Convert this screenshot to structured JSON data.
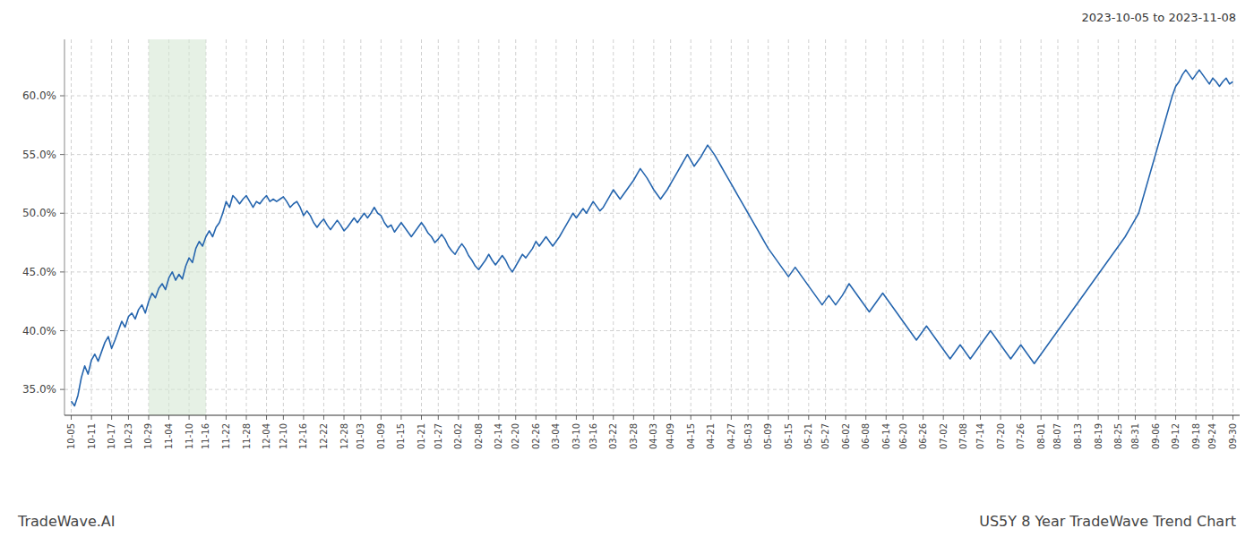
{
  "chart_data": {
    "type": "line",
    "title": "US5Y 8 Year TradeWave Trend Chart",
    "subtitle": "2023-10-05 to 2023-11-08",
    "annotations": [
      {
        "text": "TradeWave.AI"
      }
    ],
    "color": "#2565AE",
    "grid": true,
    "ylim": [
      0.328,
      0.648
    ],
    "yticks": [
      {
        "value": 0.35,
        "label": "35.0%"
      },
      {
        "value": 0.4,
        "label": "40.0%"
      },
      {
        "value": 0.45,
        "label": "45.0%"
      },
      {
        "value": 0.5,
        "label": "50.0%"
      },
      {
        "value": 0.55,
        "label": "55.0%"
      },
      {
        "value": 0.6,
        "label": "60.0%"
      }
    ],
    "shaded_range": {
      "from": "10-29",
      "to": "11-16",
      "color": "#d5e8d4"
    },
    "categories": [
      "10-05",
      null,
      null,
      null,
      null,
      null,
      "10-11",
      null,
      null,
      null,
      null,
      null,
      "10-17",
      null,
      null,
      null,
      null,
      "10-23",
      null,
      null,
      null,
      null,
      null,
      "10-29",
      null,
      null,
      null,
      null,
      null,
      "11-04",
      null,
      null,
      null,
      null,
      null,
      "11-10",
      null,
      null,
      null,
      null,
      "11-16",
      null,
      null,
      null,
      null,
      null,
      "11-22",
      null,
      null,
      null,
      null,
      null,
      "11-28",
      null,
      null,
      null,
      null,
      null,
      "12-04",
      null,
      null,
      null,
      null,
      "12-10",
      null,
      null,
      null,
      null,
      null,
      "12-16",
      null,
      null,
      null,
      null,
      null,
      "12-22",
      null,
      null,
      null,
      null,
      null,
      "12-28",
      null,
      null,
      null,
      null,
      "01-03",
      null,
      null,
      null,
      null,
      null,
      "01-09",
      null,
      null,
      null,
      null,
      null,
      "01-15",
      null,
      null,
      null,
      null,
      null,
      "01-21",
      null,
      null,
      null,
      null,
      "01-27",
      null,
      null,
      null,
      null,
      null,
      "02-02",
      null,
      null,
      null,
      null,
      null,
      "02-08",
      null,
      null,
      null,
      null,
      null,
      "02-14",
      null,
      null,
      null,
      null,
      "02-20",
      null,
      null,
      null,
      null,
      null,
      "02-26",
      null,
      null,
      null,
      null,
      null,
      "03-04",
      null,
      null,
      null,
      null,
      null,
      "03-10",
      null,
      null,
      null,
      null,
      "03-16",
      null,
      null,
      null,
      null,
      null,
      "03-22",
      null,
      null,
      null,
      null,
      null,
      "03-28",
      null,
      null,
      null,
      null,
      null,
      "04-03",
      null,
      null,
      null,
      null,
      "04-09",
      null,
      null,
      null,
      null,
      null,
      "04-15",
      null,
      null,
      null,
      null,
      null,
      "04-21",
      null,
      null,
      null,
      null,
      null,
      "04-27",
      null,
      null,
      null,
      null,
      "05-03",
      null,
      null,
      null,
      null,
      null,
      "05-09",
      null,
      null,
      null,
      null,
      null,
      "05-15",
      null,
      null,
      null,
      null,
      null,
      "05-21",
      null,
      null,
      null,
      null,
      "05-27",
      null,
      null,
      null,
      null,
      null,
      "06-02",
      null,
      null,
      null,
      null,
      null,
      "06-08",
      null,
      null,
      null,
      null,
      null,
      "06-14",
      null,
      null,
      null,
      null,
      "06-20",
      null,
      null,
      null,
      null,
      null,
      "06-26",
      null,
      null,
      null,
      null,
      null,
      "07-02",
      null,
      null,
      null,
      null,
      null,
      "07-08",
      null,
      null,
      null,
      null,
      "07-14",
      null,
      null,
      null,
      null,
      null,
      "07-20",
      null,
      null,
      null,
      null,
      null,
      "07-26",
      null,
      null,
      null,
      null,
      null,
      "08-01",
      null,
      null,
      null,
      null,
      "08-07",
      null,
      null,
      null,
      null,
      null,
      "08-13",
      null,
      null,
      null,
      null,
      null,
      "08-19",
      null,
      null,
      null,
      null,
      null,
      "08-25",
      null,
      null,
      null,
      null,
      "08-31",
      null,
      null,
      null,
      null,
      null,
      "09-06",
      null,
      null,
      null,
      null,
      null,
      "09-12",
      null,
      null,
      null,
      null,
      null,
      "09-18",
      null,
      null,
      null,
      null,
      "09-24",
      null,
      null,
      null,
      null,
      null,
      "09-30"
    ],
    "values": [
      0.34,
      0.336,
      0.345,
      0.36,
      0.37,
      0.363,
      0.375,
      0.38,
      0.374,
      0.382,
      0.39,
      0.395,
      0.385,
      0.392,
      0.4,
      0.408,
      0.403,
      0.412,
      0.415,
      0.41,
      0.418,
      0.422,
      0.415,
      0.425,
      0.432,
      0.428,
      0.436,
      0.44,
      0.435,
      0.445,
      0.45,
      0.443,
      0.448,
      0.444,
      0.455,
      0.462,
      0.458,
      0.47,
      0.476,
      0.472,
      0.48,
      0.485,
      0.48,
      0.488,
      0.492,
      0.5,
      0.51,
      0.505,
      0.515,
      0.512,
      0.508,
      0.512,
      0.515,
      0.51,
      0.505,
      0.51,
      0.508,
      0.512,
      0.515,
      0.51,
      0.512,
      0.51,
      0.512,
      0.514,
      0.51,
      0.505,
      0.508,
      0.51,
      0.505,
      0.498,
      0.502,
      0.498,
      0.492,
      0.488,
      0.492,
      0.495,
      0.49,
      0.486,
      0.49,
      0.494,
      0.49,
      0.485,
      0.488,
      0.492,
      0.496,
      0.492,
      0.496,
      0.5,
      0.496,
      0.5,
      0.505,
      0.5,
      0.498,
      0.492,
      0.488,
      0.49,
      0.484,
      0.488,
      0.492,
      0.488,
      0.484,
      0.48,
      0.484,
      0.488,
      0.492,
      0.488,
      0.483,
      0.48,
      0.475,
      0.478,
      0.482,
      0.478,
      0.472,
      0.468,
      0.465,
      0.47,
      0.474,
      0.47,
      0.464,
      0.46,
      0.455,
      0.452,
      0.456,
      0.46,
      0.465,
      0.46,
      0.456,
      0.46,
      0.464,
      0.46,
      0.454,
      0.45,
      0.455,
      0.46,
      0.465,
      0.462,
      0.466,
      0.47,
      0.476,
      0.472,
      0.476,
      0.48,
      0.476,
      0.472,
      0.476,
      0.48,
      0.485,
      0.49,
      0.495,
      0.5,
      0.496,
      0.5,
      0.504,
      0.5,
      0.505,
      0.51,
      0.506,
      0.502,
      0.505,
      0.51,
      0.515,
      0.52,
      0.516,
      0.512,
      0.516,
      0.52,
      0.524,
      0.528,
      0.533,
      0.538,
      0.534,
      0.53,
      0.525,
      0.52,
      0.516,
      0.512,
      0.516,
      0.52,
      0.525,
      0.53,
      0.535,
      0.54,
      0.545,
      0.55,
      0.545,
      0.54,
      0.544,
      0.548,
      0.553,
      0.558,
      0.554,
      0.55,
      0.545,
      0.54,
      0.535,
      0.53,
      0.525,
      0.52,
      0.515,
      0.51,
      0.505,
      0.5,
      0.495,
      0.49,
      0.485,
      0.48,
      0.475,
      0.47,
      0.466,
      0.462,
      0.458,
      0.454,
      0.45,
      0.446,
      0.45,
      0.454,
      0.45,
      0.446,
      0.442,
      0.438,
      0.434,
      0.43,
      0.426,
      0.422,
      0.426,
      0.43,
      0.426,
      0.422,
      0.426,
      0.43,
      0.435,
      0.44,
      0.436,
      0.432,
      0.428,
      0.424,
      0.42,
      0.416,
      0.42,
      0.424,
      0.428,
      0.432,
      0.428,
      0.424,
      0.42,
      0.416,
      0.412,
      0.408,
      0.404,
      0.4,
      0.396,
      0.392,
      0.396,
      0.4,
      0.404,
      0.4,
      0.396,
      0.392,
      0.388,
      0.384,
      0.38,
      0.376,
      0.38,
      0.384,
      0.388,
      0.384,
      0.38,
      0.376,
      0.38,
      0.384,
      0.388,
      0.392,
      0.396,
      0.4,
      0.396,
      0.392,
      0.388,
      0.384,
      0.38,
      0.376,
      0.38,
      0.384,
      0.388,
      0.384,
      0.38,
      0.376,
      0.372,
      0.376,
      0.38,
      0.384,
      0.388,
      0.392,
      0.396,
      0.4,
      0.404,
      0.408,
      0.412,
      0.416,
      0.42,
      0.424,
      0.428,
      0.432,
      0.436,
      0.44,
      0.444,
      0.448,
      0.452,
      0.456,
      0.46,
      0.464,
      0.468,
      0.472,
      0.476,
      0.48,
      0.485,
      0.49,
      0.495,
      0.5,
      0.51,
      0.52,
      0.53,
      0.54,
      0.55,
      0.56,
      0.57,
      0.58,
      0.59,
      0.6,
      0.608,
      0.612,
      0.618,
      0.622,
      0.618,
      0.614,
      0.618,
      0.622,
      0.618,
      0.614,
      0.61,
      0.615,
      0.612,
      0.608,
      0.612,
      0.615,
      0.61,
      0.612
    ]
  }
}
